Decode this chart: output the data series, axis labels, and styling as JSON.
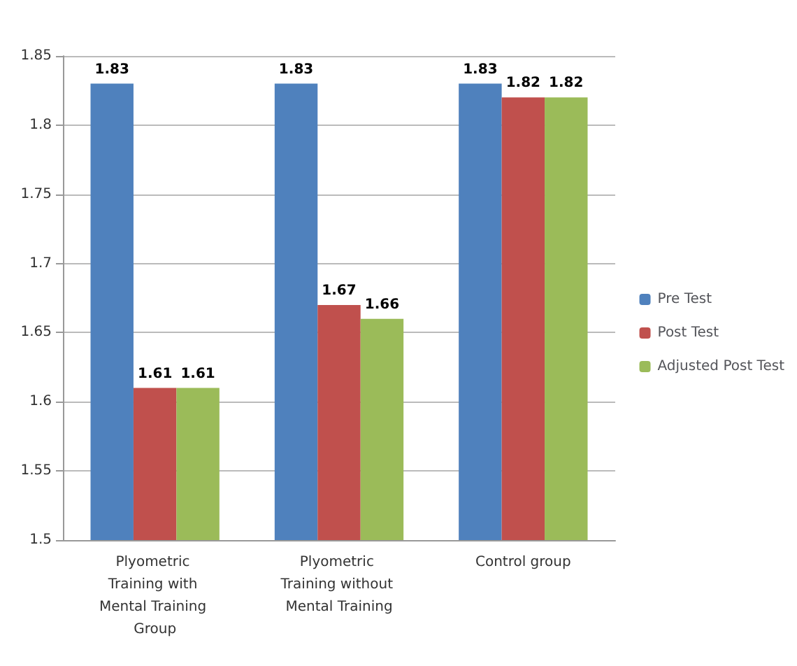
{
  "chart_data": {
    "type": "bar",
    "categories": [
      "Plyometric Training with Mental Training Group",
      "Plyometric Training without Mental Training",
      "Control group"
    ],
    "series": [
      {
        "name": "Pre Test",
        "color": "#4f81bd",
        "values": [
          1.83,
          1.83,
          1.83
        ]
      },
      {
        "name": "Post Test",
        "color": "#c0504d",
        "values": [
          1.61,
          1.67,
          1.82
        ]
      },
      {
        "name": "Adjusted Post Test",
        "color": "#9bbb59",
        "values": [
          1.61,
          1.66,
          1.82
        ]
      }
    ],
    "ylim": [
      1.5,
      1.85
    ],
    "yticks": [
      1.5,
      1.55,
      1.6,
      1.65,
      1.7,
      1.75,
      1.8,
      1.85
    ],
    "grid": "y",
    "legend": "right",
    "data_labels": true
  }
}
